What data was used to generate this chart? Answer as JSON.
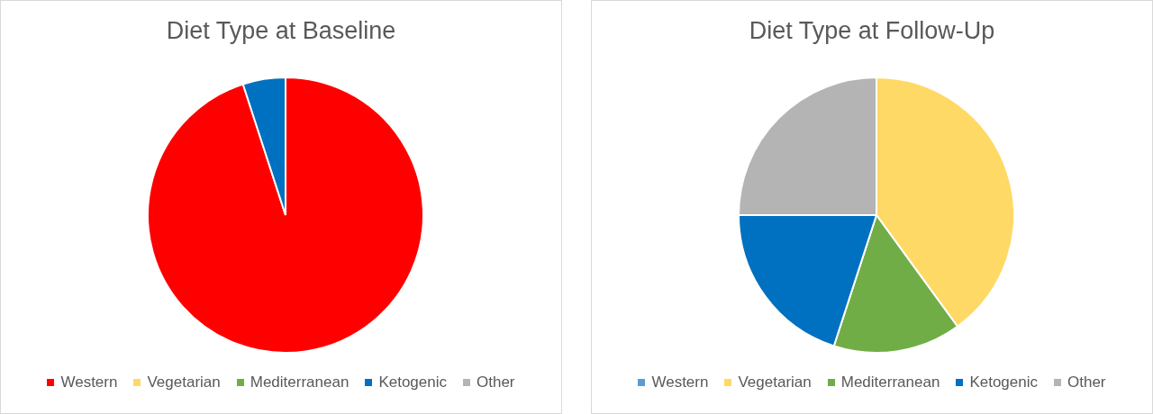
{
  "chart_data": [
    {
      "type": "pie",
      "title": "Diet Type at Baseline",
      "categories": [
        "Western",
        "Vegetarian",
        "Mediterranean",
        "Ketogenic",
        "Other"
      ],
      "values": [
        95,
        0,
        0,
        5,
        0
      ],
      "colors": [
        "#ff0000",
        "#ffd966",
        "#70ad47",
        "#0070c0",
        "#b4b4b4"
      ],
      "legend": "bottom"
    },
    {
      "type": "pie",
      "title": "Diet Type at Follow-Up",
      "categories": [
        "Western",
        "Vegetarian",
        "Mediterranean",
        "Ketogenic",
        "Other"
      ],
      "values": [
        0,
        40,
        15,
        20,
        25
      ],
      "colors": [
        "#5b9bd5",
        "#ffd966",
        "#70ad47",
        "#0070c0",
        "#b4b4b4"
      ],
      "legend": "bottom"
    }
  ]
}
